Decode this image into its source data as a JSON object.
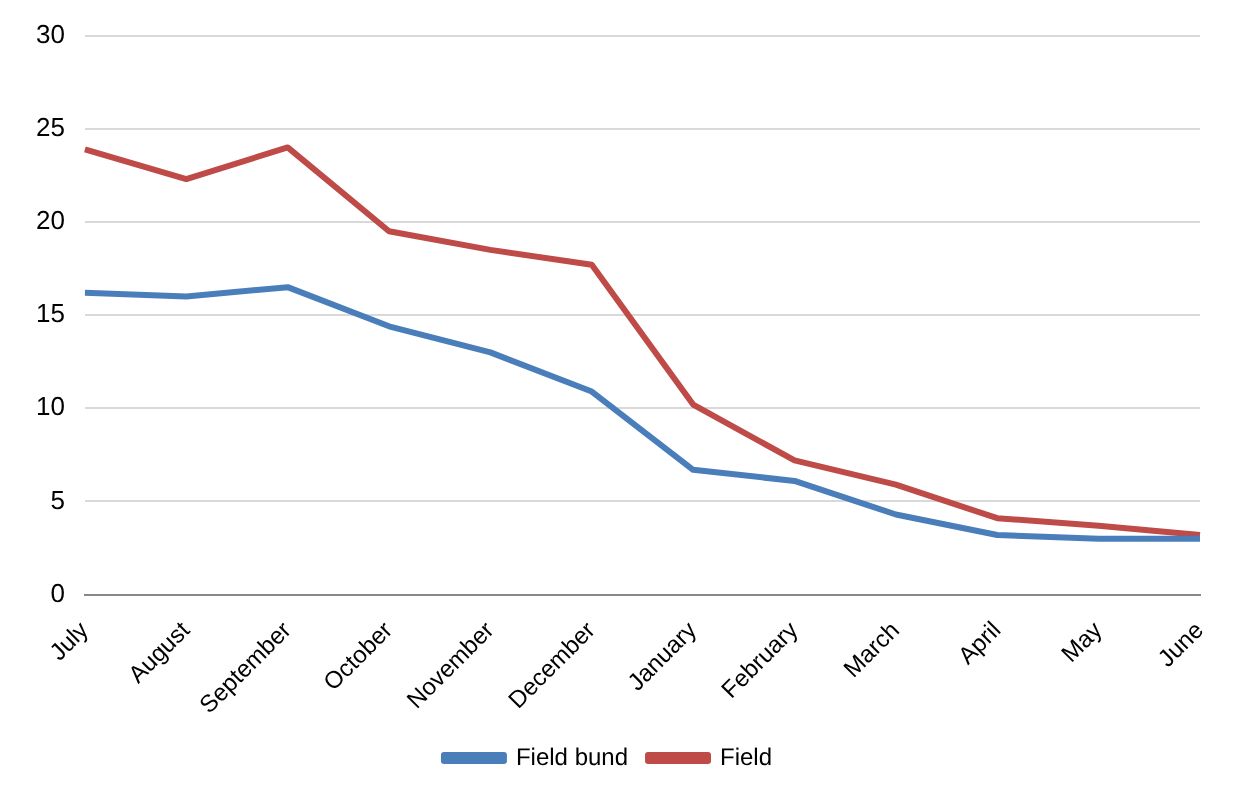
{
  "chart_data": {
    "type": "line",
    "categories": [
      "July",
      "August",
      "September",
      "October",
      "November",
      "December",
      "January",
      "February",
      "March",
      "April",
      "May",
      "June"
    ],
    "series": [
      {
        "name": "Field bund",
        "color": "#4a7ebb",
        "values": [
          16.2,
          16.0,
          16.5,
          14.4,
          13.0,
          10.9,
          6.7,
          6.1,
          4.3,
          3.2,
          3.0,
          3.0
        ]
      },
      {
        "name": "Field",
        "color": "#be4b48",
        "values": [
          23.9,
          22.3,
          24.0,
          19.5,
          18.5,
          17.7,
          10.2,
          7.2,
          5.9,
          4.1,
          3.7,
          3.2
        ]
      }
    ],
    "ylim": [
      0,
      30
    ],
    "yticks": [
      0,
      5,
      10,
      15,
      20,
      25,
      30
    ],
    "grid": "y",
    "legend": "bottom",
    "marker": "none",
    "line_style": "solid"
  }
}
